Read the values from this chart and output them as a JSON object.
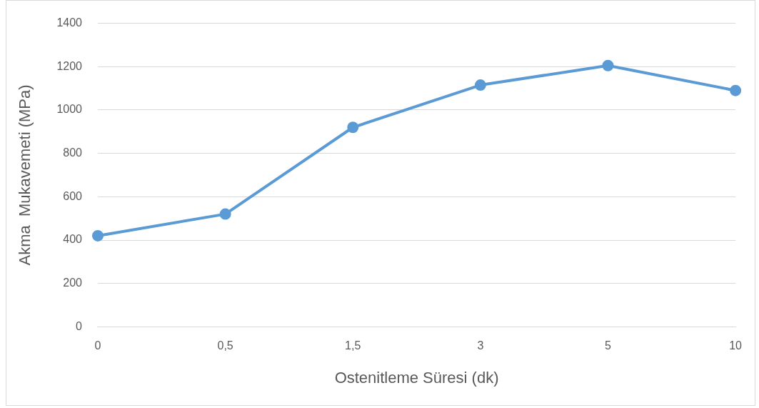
{
  "chart_data": {
    "type": "line",
    "xlabel": "Ostenitleme Süresi (dk)",
    "ylabel": "Akma  Mukavemeti (MPa)",
    "categories": [
      "0",
      "0,5",
      "1,5",
      "3",
      "5",
      "10"
    ],
    "series": [
      {
        "color": "#5b9bd5",
        "values": [
          420,
          520,
          920,
          1115,
          1205,
          1090
        ]
      }
    ],
    "ylim": [
      0,
      1400
    ],
    "yticks": [
      0,
      200,
      400,
      600,
      800,
      1000,
      1200,
      1400
    ],
    "grid": "y",
    "marker": "circle",
    "line_style": "solid",
    "legend": false
  }
}
